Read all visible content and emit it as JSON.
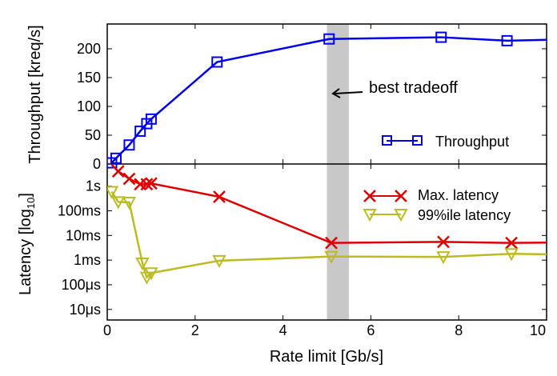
{
  "chart_data": [
    {
      "type": "line",
      "panel": "top",
      "ylabel": "Throughput [kreq/s]",
      "xlim": [
        0,
        10
      ],
      "ylim": [
        0,
        243
      ],
      "yticks": [
        0,
        50,
        100,
        150,
        200
      ],
      "ytick_labels": [
        "0",
        "50",
        "100",
        "150",
        "200"
      ],
      "legend_placement": "bottom-right",
      "series": [
        {
          "name": "Throughput",
          "color": "#0000ee",
          "marker": "square",
          "x": [
            0.1,
            0.2,
            0.5,
            0.75,
            0.9,
            1.0,
            2.5,
            5.05,
            7.6,
            9.1,
            10.2
          ],
          "y": [
            2,
            10,
            33,
            57,
            70,
            78,
            177,
            217,
            220,
            214,
            216
          ],
          "marker_count": 10
        }
      ],
      "annotation": {
        "text": "best tradeoff",
        "x_band": [
          5.0,
          5.5
        ],
        "band_color": "#c8c8c8"
      }
    },
    {
      "type": "line",
      "panel": "bottom",
      "xlabel": "Rate limit [Gb/s]",
      "ylabel": "Latency [log",
      "ylabel_sub": "10",
      "ylabel_close": "]",
      "xlim": [
        0,
        10
      ],
      "xticks": [
        0,
        2,
        4,
        6,
        8,
        10
      ],
      "xtick_labels": [
        "0",
        "2",
        "4",
        "6",
        "8",
        "10"
      ],
      "ylim_log10_seconds": [
        -5.43,
        0.9
      ],
      "yticks_log10_seconds": [
        0,
        -1,
        -2,
        -3,
        -4,
        -5
      ],
      "ytick_labels": [
        "1s",
        "100ms",
        "10ms",
        "1ms",
        "100μs",
        "10μs"
      ],
      "legend_placement": "top-right",
      "series": [
        {
          "name": "Max. latency",
          "color": "#dd0000",
          "marker": "x",
          "x": [
            0.1,
            0.25,
            0.5,
            0.75,
            0.9,
            1.0,
            2.55,
            5.1,
            7.65,
            9.2,
            10.2
          ],
          "y_seconds": [
            7.5,
            4.0,
            2.0,
            1.2,
            1.2,
            1.3,
            0.37,
            0.005,
            0.0055,
            0.005,
            0.0052
          ],
          "marker_from": 1
        },
        {
          "name": "99%ile latency",
          "color": "#bbbb22",
          "marker": "triangle-down",
          "x": [
            0.1,
            0.25,
            0.5,
            0.8,
            0.9,
            1.0,
            2.55,
            5.1,
            7.65,
            9.2,
            10.2
          ],
          "y_seconds": [
            0.6,
            0.23,
            0.22,
            0.00075,
            0.0002,
            0.0003,
            0.00095,
            0.0014,
            0.00135,
            0.0018,
            0.0017
          ],
          "marker_from": 0
        }
      ]
    }
  ]
}
